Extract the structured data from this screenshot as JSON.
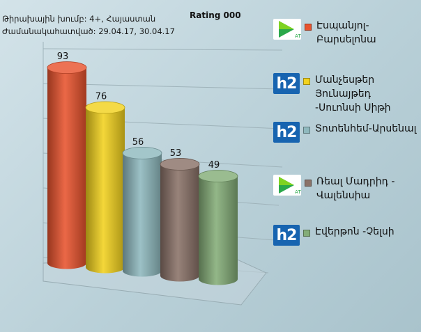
{
  "meta": {
    "line1": "Թիրախային խումբ: 4+, Հայաստան",
    "line2": "Ժամանակահատված: 29.04.17, 30.04.17"
  },
  "chart_data": {
    "type": "bar",
    "title": "Rating 000",
    "categories": [
      "Էսպանյոլ-Բարսելոնա",
      "Մանչեսթեր Յունայթեդ -Սուոնսի Սիթի",
      "Տոտենհեմ-Արսենալ",
      "Ռեալ Մադրիդ - Վալենսիա",
      "Էվերթոն -Չելսի"
    ],
    "values": [
      93,
      76,
      56,
      53,
      49
    ],
    "colors": [
      "#e8532e",
      "#f2d21e",
      "#8fb9be",
      "#8a7268",
      "#84ad78"
    ],
    "channels": [
      "play-icon",
      "h2-logo-icon",
      "h2-logo-icon",
      "play-icon",
      "h2-logo-icon"
    ],
    "ylim": [
      0,
      100
    ],
    "grid": true,
    "legend_position": "right"
  },
  "legend": {
    "items": [
      {
        "label": "Էսպանյոլ-Բարսելոնա"
      },
      {
        "label": "Մանչեսթեր Յունայթեդ\n-Սուոնսի Սիթի"
      },
      {
        "label": "Տոտենհեմ-Արսենալ"
      },
      {
        "label": "Ռեալ Մադրիդ -\nՎալենսիա"
      },
      {
        "label": "Էվերթոն -Չելսի"
      }
    ],
    "h2_text": "h2"
  }
}
